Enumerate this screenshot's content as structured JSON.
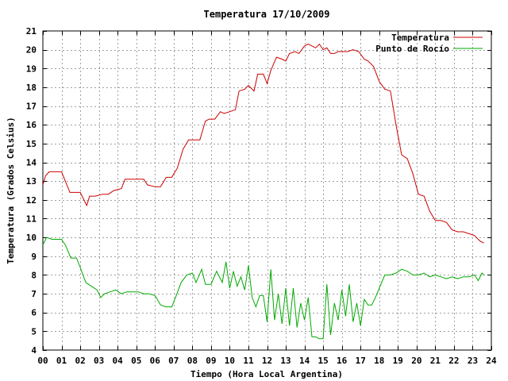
{
  "chart_data": {
    "type": "line",
    "title": "Temperatura 17/10/2009",
    "xlabel": "Tiempo (Hora Local Argentina)",
    "ylabel": "Temperatura (Grados Celsius)",
    "xlim": [
      0,
      24
    ],
    "ylim": [
      4,
      21
    ],
    "x_ticks": [
      "00",
      "01",
      "02",
      "03",
      "04",
      "05",
      "06",
      "07",
      "08",
      "09",
      "10",
      "11",
      "12",
      "13",
      "14",
      "15",
      "16",
      "17",
      "18",
      "19",
      "20",
      "21",
      "22",
      "23",
      "24"
    ],
    "y_ticks": [
      "4",
      "5",
      "6",
      "7",
      "8",
      "9",
      "10",
      "11",
      "12",
      "13",
      "14",
      "15",
      "16",
      "17",
      "18",
      "19",
      "20",
      "21"
    ],
    "grid": true,
    "legend_position": "top-right",
    "series": [
      {
        "name": "Temperatura",
        "color": "#cc0000",
        "x": [
          0,
          0.15,
          0.35,
          0.6,
          1.0,
          1.2,
          1.45,
          1.7,
          2.0,
          2.35,
          2.5,
          2.8,
          3.2,
          3.5,
          3.8,
          4.2,
          4.4,
          4.6,
          5.0,
          5.4,
          5.6,
          6.0,
          6.3,
          6.6,
          6.9,
          7.2,
          7.5,
          7.8,
          8.1,
          8.4,
          8.7,
          8.9,
          9.2,
          9.5,
          9.7,
          10.0,
          10.3,
          10.5,
          10.8,
          11.0,
          11.3,
          11.5,
          11.8,
          12.0,
          12.2,
          12.5,
          12.8,
          13.0,
          13.2,
          13.5,
          13.7,
          14.0,
          14.2,
          14.4,
          14.6,
          14.8,
          15.0,
          15.2,
          15.4,
          15.6,
          15.8,
          16.0,
          16.3,
          16.6,
          16.9,
          17.2,
          17.4,
          17.7,
          18.0,
          18.3,
          18.6,
          18.9,
          19.2,
          19.5,
          19.8,
          20.1,
          20.4,
          20.7,
          21.0,
          21.3,
          21.6,
          21.9,
          22.2,
          22.5,
          22.8,
          23.1,
          23.4,
          23.6
        ],
        "y": [
          12.8,
          13.3,
          13.5,
          13.5,
          13.5,
          13.0,
          12.4,
          12.4,
          12.4,
          11.7,
          12.2,
          12.2,
          12.3,
          12.3,
          12.5,
          12.6,
          13.1,
          13.1,
          13.1,
          13.1,
          12.8,
          12.7,
          12.7,
          13.2,
          13.2,
          13.7,
          14.7,
          15.2,
          15.2,
          15.2,
          16.2,
          16.3,
          16.3,
          16.7,
          16.6,
          16.7,
          16.8,
          17.8,
          17.9,
          18.1,
          17.8,
          18.7,
          18.7,
          18.2,
          18.9,
          19.6,
          19.5,
          19.4,
          19.8,
          19.9,
          19.8,
          20.2,
          20.3,
          20.2,
          20.1,
          20.3,
          20.0,
          20.1,
          19.8,
          19.8,
          19.9,
          19.9,
          19.9,
          20.0,
          19.9,
          19.5,
          19.4,
          19.1,
          18.3,
          17.9,
          17.8,
          16.0,
          14.4,
          14.2,
          13.4,
          12.3,
          12.2,
          11.4,
          10.9,
          10.9,
          10.8,
          10.4,
          10.3,
          10.3,
          10.2,
          10.1,
          9.8,
          9.7
        ]
      },
      {
        "name": "Punto de Rocío",
        "color": "#00aa00",
        "x": [
          0,
          0.2,
          0.5,
          0.8,
          1.0,
          1.2,
          1.5,
          1.8,
          2.0,
          2.3,
          2.6,
          2.9,
          3.1,
          3.3,
          3.6,
          3.9,
          4.2,
          4.5,
          4.8,
          5.1,
          5.4,
          5.7,
          6.0,
          6.3,
          6.6,
          6.9,
          7.1,
          7.4,
          7.7,
          8.0,
          8.2,
          8.5,
          8.7,
          9.0,
          9.3,
          9.6,
          9.8,
          10.0,
          10.2,
          10.4,
          10.6,
          10.8,
          11.0,
          11.2,
          11.4,
          11.6,
          11.8,
          12.0,
          12.2,
          12.4,
          12.6,
          12.8,
          13.0,
          13.2,
          13.4,
          13.6,
          13.8,
          14.0,
          14.2,
          14.4,
          14.6,
          14.8,
          15.0,
          15.2,
          15.4,
          15.6,
          15.8,
          16.0,
          16.2,
          16.4,
          16.6,
          16.8,
          17.0,
          17.2,
          17.4,
          17.6,
          17.8,
          18.0,
          18.3,
          18.6,
          18.9,
          19.2,
          19.5,
          19.8,
          20.1,
          20.4,
          20.7,
          21.0,
          21.3,
          21.6,
          21.9,
          22.2,
          22.5,
          22.8,
          23.1,
          23.3,
          23.5,
          23.6
        ],
        "y": [
          9.6,
          10.0,
          9.9,
          9.9,
          9.9,
          9.6,
          8.9,
          8.9,
          8.4,
          7.6,
          7.4,
          7.2,
          6.8,
          7.0,
          7.1,
          7.2,
          7.0,
          7.1,
          7.1,
          7.1,
          7.0,
          7.0,
          6.9,
          6.4,
          6.3,
          6.3,
          6.8,
          7.6,
          8.0,
          8.1,
          7.6,
          8.3,
          7.5,
          7.5,
          8.2,
          7.6,
          8.7,
          7.3,
          8.2,
          7.4,
          7.9,
          7.2,
          8.5,
          6.8,
          6.3,
          6.9,
          6.9,
          5.5,
          8.3,
          5.6,
          7.0,
          5.4,
          7.3,
          5.3,
          7.3,
          5.2,
          6.5,
          5.6,
          6.8,
          4.7,
          4.7,
          4.6,
          4.6,
          7.5,
          4.8,
          6.5,
          5.6,
          7.2,
          5.8,
          7.5,
          5.5,
          6.5,
          5.3,
          6.7,
          6.4,
          6.4,
          6.8,
          7.3,
          8.0,
          8.0,
          8.1,
          8.3,
          8.2,
          8.0,
          8.0,
          8.1,
          7.9,
          8.0,
          7.9,
          7.8,
          7.9,
          7.8,
          7.9,
          7.9,
          8.0,
          7.7,
          8.1,
          8.0
        ]
      }
    ]
  }
}
